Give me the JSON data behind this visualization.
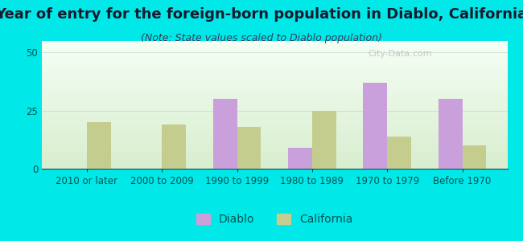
{
  "title": "Year of entry for the foreign-born population in Diablo, California",
  "subtitle": "(Note: State values scaled to Diablo population)",
  "categories": [
    "2010 or later",
    "2000 to 2009",
    "1990 to 1999",
    "1980 to 1989",
    "1970 to 1979",
    "Before 1970"
  ],
  "diablo_values": [
    0,
    0,
    30,
    9,
    37,
    30
  ],
  "california_values": [
    20,
    19,
    18,
    25,
    14,
    10
  ],
  "diablo_color": "#c9a0dc",
  "california_color": "#c5cd8e",
  "background_color": "#00e8e8",
  "ylim": [
    0,
    55
  ],
  "yticks": [
    0,
    25,
    50
  ],
  "bar_width": 0.32,
  "title_fontsize": 13,
  "subtitle_fontsize": 9,
  "tick_fontsize": 8.5,
  "legend_fontsize": 10,
  "title_color": "#1a1a2e",
  "subtitle_color": "#3a3a5a",
  "tick_color": "#005555",
  "grid_color": "#d0d0d0",
  "watermark_text": "City-Data.com",
  "watermark_color": "#c0c0c0"
}
